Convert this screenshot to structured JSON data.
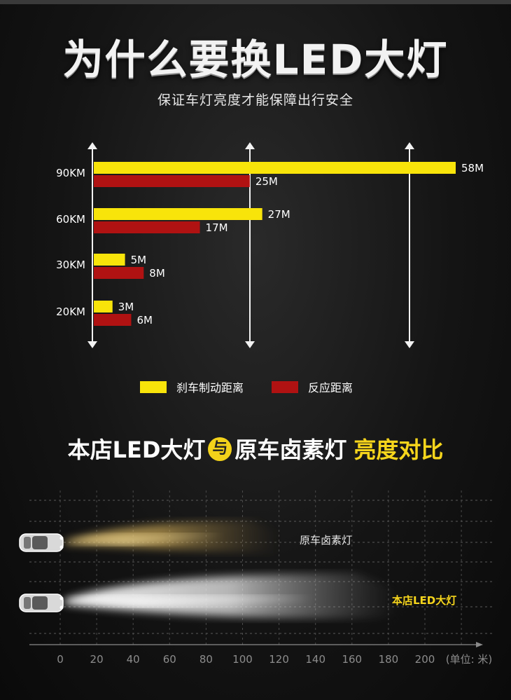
{
  "header": {
    "title": "为什么要换LED大灯",
    "subtitle": "保证车灯亮度才能保障出行安全"
  },
  "chart_data": [
    {
      "type": "bar",
      "orientation": "horizontal",
      "categories": [
        "90KM",
        "60KM",
        "30KM",
        "20KM"
      ],
      "series": [
        {
          "name": "刹车制动距离",
          "color": "#f8e40a",
          "values": [
            58,
            27,
            5,
            3
          ],
          "labels": [
            "58M",
            "27M",
            "5M",
            "3M"
          ]
        },
        {
          "name": "反应距离",
          "color": "#b01212",
          "values": [
            25,
            17,
            8,
            6
          ],
          "labels": [
            "25M",
            "17M",
            "8M",
            "6M"
          ]
        }
      ],
      "xlim": [
        0,
        60
      ],
      "legend_position": "bottom-center",
      "grid": false
    },
    {
      "type": "area",
      "title_parts": {
        "left": "本店LED大灯",
        "vs": "与",
        "right": "原车卤素灯",
        "highlight": "亮度对比"
      },
      "x_ticks": [
        0,
        20,
        40,
        60,
        80,
        100,
        120,
        140,
        160,
        180,
        200
      ],
      "x_unit": "(单位: 米)",
      "xlim": [
        0,
        200
      ],
      "series": [
        {
          "name": "原车卤素灯",
          "color": "#d8b25a",
          "reach": 120
        },
        {
          "name": "本店LED大灯",
          "color": "#f4f4f4",
          "reach": 185
        }
      ]
    }
  ],
  "colors": {
    "yellow": "#f8e40a",
    "red": "#b01212",
    "accent": "#f6d51c"
  }
}
